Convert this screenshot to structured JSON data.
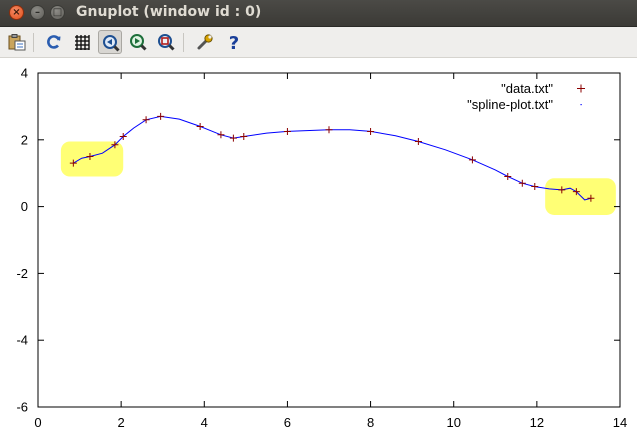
{
  "window": {
    "title": "Gnuplot (window id : 0)",
    "close_glyph": "×",
    "minimize_glyph": "–",
    "maximize_glyph": "□"
  },
  "toolbar": {
    "buttons": [
      {
        "icon": "copy-to-clipboard-icon"
      },
      {
        "icon": "replot-icon"
      },
      {
        "icon": "grid-icon"
      },
      {
        "icon": "zoom-previous-icon",
        "active": true
      },
      {
        "icon": "zoom-next-icon"
      },
      {
        "icon": "autoscale-icon"
      },
      {
        "icon": "options-wrench-icon"
      },
      {
        "icon": "help-icon"
      }
    ],
    "help_glyph": "?"
  },
  "colors": {
    "points": "#8b0000",
    "spline": "#0000ff",
    "highlight": "#ffff66"
  },
  "chart_data": {
    "type": "scatter",
    "title": "",
    "xlabel": "",
    "ylabel": "",
    "xlim": [
      0,
      14
    ],
    "ylim": [
      -6,
      4
    ],
    "x_ticks": [
      "0",
      "2",
      "4",
      "6",
      "8",
      "10",
      "12",
      "14"
    ],
    "y_ticks": [
      "-6",
      "-4",
      "-2",
      "0",
      "2",
      "4"
    ],
    "grid": false,
    "legend_placement": "top-right",
    "series": [
      {
        "name": "\"data.txt\"",
        "marker": "+",
        "color": "#8b0000",
        "x": [
          0.85,
          1.25,
          1.85,
          2.05,
          2.6,
          2.95,
          3.9,
          4.4,
          4.7,
          4.95,
          6.0,
          7.0,
          8.0,
          9.15,
          10.45,
          11.3,
          11.65,
          11.95,
          12.6,
          12.95,
          13.3
        ],
        "y": [
          1.3,
          1.5,
          1.85,
          2.1,
          2.6,
          2.7,
          2.4,
          2.15,
          2.05,
          2.1,
          2.25,
          2.3,
          2.25,
          1.95,
          1.4,
          0.9,
          0.7,
          0.6,
          0.5,
          0.45,
          0.25
        ]
      },
      {
        "name": "\"spline-plot.txt\"",
        "marker": ".",
        "color": "#0000ff",
        "x": [
          0.85,
          1.05,
          1.25,
          1.55,
          1.85,
          2.05,
          2.3,
          2.6,
          2.95,
          3.4,
          3.9,
          4.4,
          4.7,
          4.95,
          5.5,
          6.0,
          7.0,
          7.5,
          8.0,
          8.6,
          9.15,
          9.8,
          10.45,
          11.0,
          11.3,
          11.65,
          11.95,
          12.3,
          12.6,
          12.8,
          12.95,
          13.15,
          13.3
        ],
        "y": [
          1.3,
          1.45,
          1.5,
          1.6,
          1.85,
          2.1,
          2.35,
          2.6,
          2.7,
          2.62,
          2.4,
          2.15,
          2.05,
          2.1,
          2.2,
          2.25,
          2.3,
          2.3,
          2.25,
          2.12,
          1.95,
          1.7,
          1.4,
          1.1,
          0.9,
          0.7,
          0.6,
          0.53,
          0.5,
          0.55,
          0.45,
          0.2,
          0.25
        ]
      }
    ],
    "highlights": [
      {
        "x0": 0.55,
        "x1": 2.05,
        "y0": 0.9,
        "y1": 1.95
      },
      {
        "x0": 12.2,
        "x1": 13.9,
        "y0": -0.25,
        "y1": 0.85
      }
    ]
  }
}
